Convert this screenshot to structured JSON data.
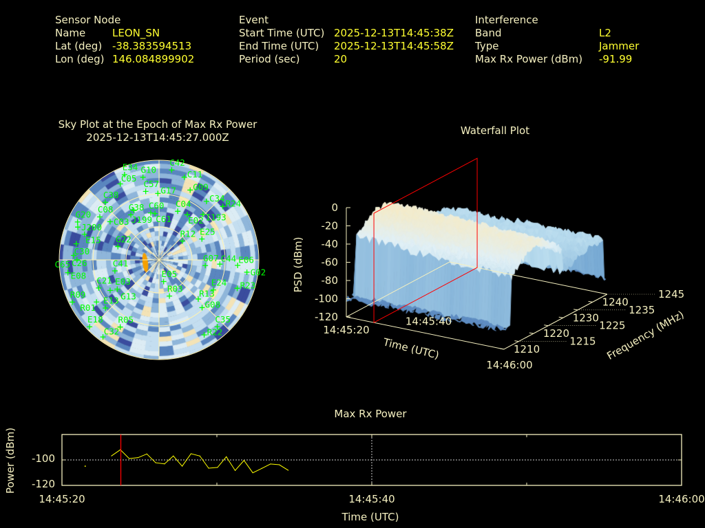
{
  "header": {
    "sensor": {
      "title": "Sensor Node",
      "name_label": "Name",
      "name": "LEON_SN",
      "lat_label": "Lat (deg)",
      "lat": "-38.383594513",
      "lon_label": "Lon (deg)",
      "lon": "146.084899902"
    },
    "event": {
      "title": "Event",
      "start_label": "Start Time (UTC)",
      "start": "2025-12-13T14:45:38Z",
      "end_label": "End Time (UTC)",
      "end": "2025-12-13T14:45:58Z",
      "period_label": "Period (sec)",
      "period": "20"
    },
    "interference": {
      "title": "Interference",
      "band_label": "Band",
      "band": "L2",
      "type_label": "Type",
      "type": "Jammer",
      "power_label": "Max Rx Power (dBm)",
      "power": "-91.99"
    }
  },
  "colors": {
    "label": "#f5f0c0",
    "value": "#ffff30",
    "sat": "#00ff00",
    "marker": "#ff0000",
    "line": "#ffff00"
  },
  "chart_data": [
    {
      "type": "polar-heatmap",
      "title": "Sky Plot at the Epoch of Max Rx Power",
      "subtitle": "2025-12-13T14:45:27.000Z",
      "satellites": [
        {
          "id": "C42",
          "az": 8,
          "el": 8
        },
        {
          "id": "C11",
          "az": 17,
          "el": 12
        },
        {
          "id": "E34",
          "az": 338,
          "el": 7
        },
        {
          "id": "G10",
          "az": 349,
          "el": 14
        },
        {
          "id": "C05",
          "az": 333,
          "el": 13
        },
        {
          "id": "C57",
          "az": 349,
          "el": 27
        },
        {
          "id": "G17",
          "az": 359,
          "el": 30
        },
        {
          "id": "G09",
          "az": 24,
          "el": 21
        },
        {
          "id": "C38",
          "az": 317,
          "el": 19
        },
        {
          "id": "C34",
          "az": 39,
          "el": 22
        },
        {
          "id": "R24",
          "az": 50,
          "el": 15
        },
        {
          "id": "I193",
          "az": 44,
          "el": 33
        },
        {
          "id": "C08",
          "az": 306,
          "el": 24
        },
        {
          "id": "C03",
          "az": 308,
          "el": 34
        },
        {
          "id": "G20",
          "az": 295,
          "el": 9
        },
        {
          "id": "G38",
          "az": 328,
          "el": 42
        },
        {
          "id": "J199",
          "az": 333,
          "el": 40
        },
        {
          "id": "C60",
          "az": 350,
          "el": 47
        },
        {
          "id": "C61",
          "az": 355,
          "el": 48
        },
        {
          "id": "C04",
          "az": 21,
          "el": 43
        },
        {
          "id": "E02",
          "az": 32,
          "el": 42
        },
        {
          "id": "R12",
          "az": 51,
          "el": 63
        },
        {
          "id": "E25",
          "az": 64,
          "el": 47
        },
        {
          "id": "G22",
          "az": 288,
          "el": 51
        },
        {
          "id": "J200",
          "az": 292,
          "el": 11
        },
        {
          "id": "E15",
          "az": 289,
          "el": 19
        },
        {
          "id": "C30",
          "az": 281,
          "el": 14
        },
        {
          "id": "C26",
          "az": 273,
          "el": 13
        },
        {
          "id": "C65",
          "az": 270,
          "el": 16
        },
        {
          "id": "G07",
          "az": 97,
          "el": 48
        },
        {
          "id": "C44",
          "az": 94,
          "el": 35
        },
        {
          "id": "E06",
          "az": 94,
          "el": 19
        },
        {
          "id": "G02",
          "az": 98,
          "el": 10
        },
        {
          "id": "E08",
          "az": 262,
          "el": 7
        },
        {
          "id": "C41",
          "az": 256,
          "el": 49
        },
        {
          "id": "E03",
          "az": 235,
          "el": 44
        },
        {
          "id": "C21",
          "az": 245,
          "el": 30
        },
        {
          "id": "R09",
          "az": 244,
          "el": 3
        },
        {
          "id": "E05",
          "az": 168,
          "el": 70
        },
        {
          "id": "R03",
          "az": 164,
          "el": 56
        },
        {
          "id": "E24",
          "az": 119,
          "el": 34
        },
        {
          "id": "R23",
          "az": 110,
          "el": 15
        },
        {
          "id": "R13",
          "az": 135,
          "el": 40
        },
        {
          "id": "G08",
          "az": 138,
          "el": 32
        },
        {
          "id": "C35",
          "az": 139,
          "el": 10
        },
        {
          "id": "R22",
          "az": 149,
          "el": 11
        },
        {
          "id": "E13",
          "az": 228,
          "el": 25
        },
        {
          "id": "E18",
          "az": 226,
          "el": 3
        },
        {
          "id": "R05",
          "az": 210,
          "el": 20
        },
        {
          "id": "C32",
          "az": 216,
          "el": 4
        },
        {
          "id": "G13",
          "az": 238,
          "el": 38
        },
        {
          "id": "R01",
          "az": 236,
          "el": 22
        }
      ]
    },
    {
      "type": "surface",
      "title": "Waterfall Plot",
      "xlabel": "Time (UTC)",
      "ylabel": "Frequency (MHz)",
      "zlabel": "PSD (dBm)",
      "x_ticks": [
        "14:45:20",
        "14:45:40",
        "14:46:00"
      ],
      "y_ticks": [
        "1210",
        "1215",
        "1220",
        "1225",
        "1230",
        "1235",
        "1240",
        "1245"
      ],
      "z_ticks": [
        "0",
        "-20",
        "-40",
        "-60",
        "-80",
        "-100",
        "-120"
      ],
      "zlim": [
        -120,
        0
      ],
      "ylim": [
        1210,
        1245
      ],
      "marker_time_s": 7
    },
    {
      "type": "line",
      "title": "Max Rx Power",
      "xlabel": "Time (UTC)",
      "ylabel": "Power (dBm)",
      "x_ticks": [
        "14:45:20",
        "14:45:40",
        "14:46:00"
      ],
      "y_ticks": [
        "-100",
        "-120"
      ],
      "xlim_s": [
        0,
        40
      ],
      "ylim": [
        -120,
        -80
      ],
      "marker_time_s": 3.8,
      "isolated_point": {
        "t": 1.5,
        "v": -104.9
      },
      "t": [
        3.2,
        3.77,
        4.34,
        4.91,
        5.48,
        6.05,
        6.62,
        7.19,
        7.76,
        8.33,
        8.9,
        9.47,
        10.04,
        10.61,
        11.18,
        11.75,
        12.32,
        12.89,
        13.46,
        14.03,
        14.6
      ],
      "values": [
        -96.8,
        -91.99,
        -98.9,
        -98.2,
        -95.3,
        -102.2,
        -103.1,
        -96.9,
        -104.9,
        -95.1,
        -96.9,
        -106.5,
        -105.9,
        -97.5,
        -108.3,
        -100.4,
        -110.1,
        -106.7,
        -103.2,
        -103.8,
        -108.1
      ]
    }
  ]
}
